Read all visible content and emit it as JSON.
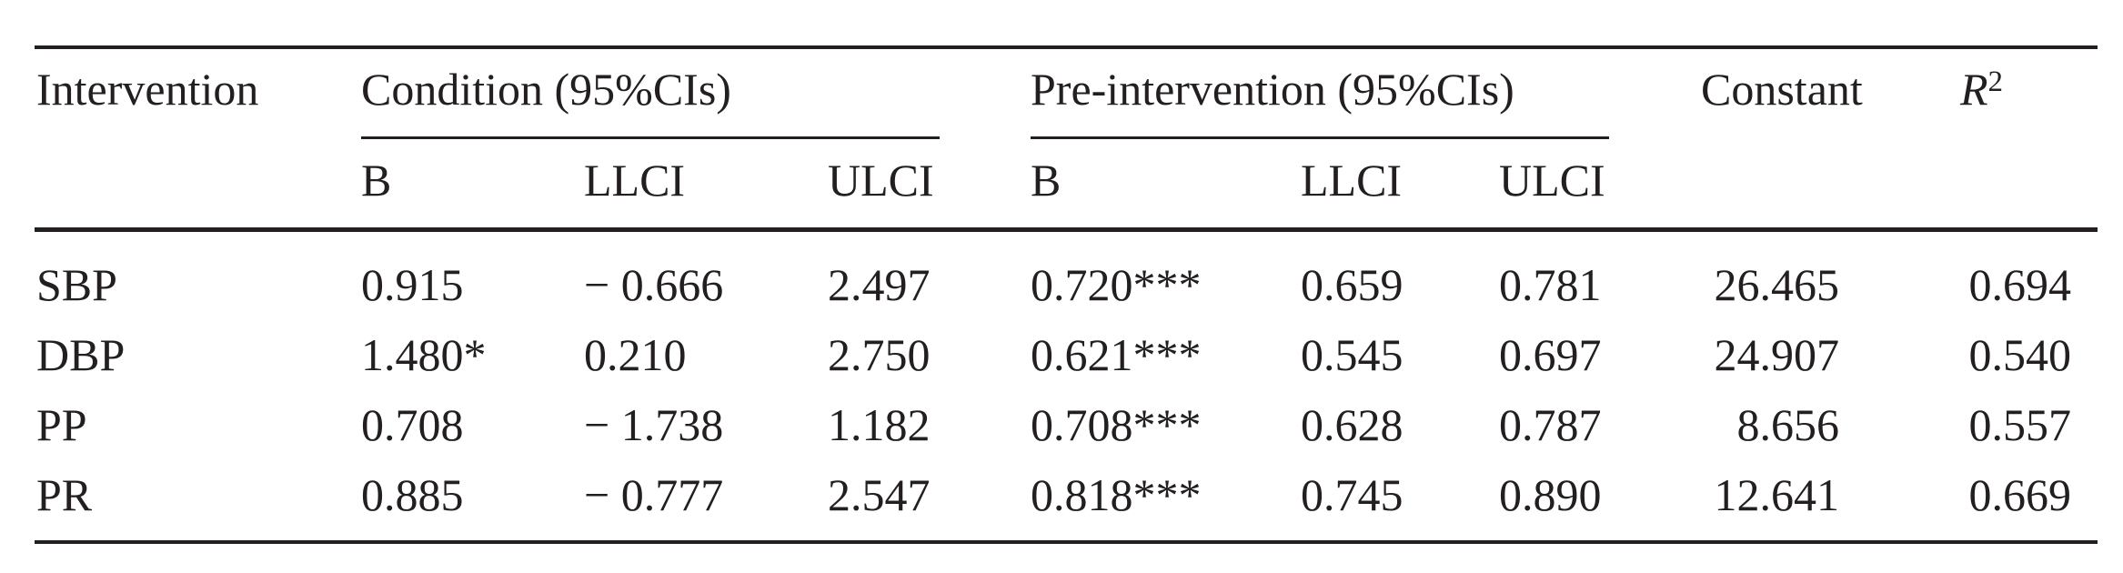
{
  "table": {
    "headers": {
      "intervention": "Intervention",
      "condition_group": "Condition (95%CIs)",
      "pre_group": "Pre-intervention (95%CIs)",
      "constant": "Constant",
      "r2_base": "R",
      "r2_sup": "2",
      "sub": {
        "cond_b": "B",
        "cond_llci": "LLCI",
        "cond_ulci": "ULCI",
        "pre_b": "B",
        "pre_llci": "LLCI",
        "pre_ulci": "ULCI"
      }
    },
    "rows": [
      {
        "intervention": "SBP",
        "cond_b": "0.915",
        "cond_llci": "− 0.666",
        "cond_ulci": "2.497",
        "pre_b": "0.720***",
        "pre_llci": "0.659",
        "pre_ulci": "0.781",
        "constant": "26.465",
        "r2": "0.694"
      },
      {
        "intervention": "DBP",
        "cond_b": "1.480*",
        "cond_llci": "0.210",
        "cond_ulci": "2.750",
        "pre_b": "0.621***",
        "pre_llci": "0.545",
        "pre_ulci": "0.697",
        "constant": "24.907",
        "r2": "0.540"
      },
      {
        "intervention": "PP",
        "cond_b": "0.708",
        "cond_llci": "− 1.738",
        "cond_ulci": "1.182",
        "pre_b": "0.708***",
        "pre_llci": "0.628",
        "pre_ulci": "0.787",
        "constant": "8.656",
        "r2": "0.557"
      },
      {
        "intervention": "PR",
        "cond_b": "0.885",
        "cond_llci": "− 0.777",
        "cond_ulci": "2.547",
        "pre_b": "0.818***",
        "pre_llci": "0.745",
        "pre_ulci": "0.890",
        "constant": "12.641",
        "r2": "0.669"
      }
    ]
  }
}
